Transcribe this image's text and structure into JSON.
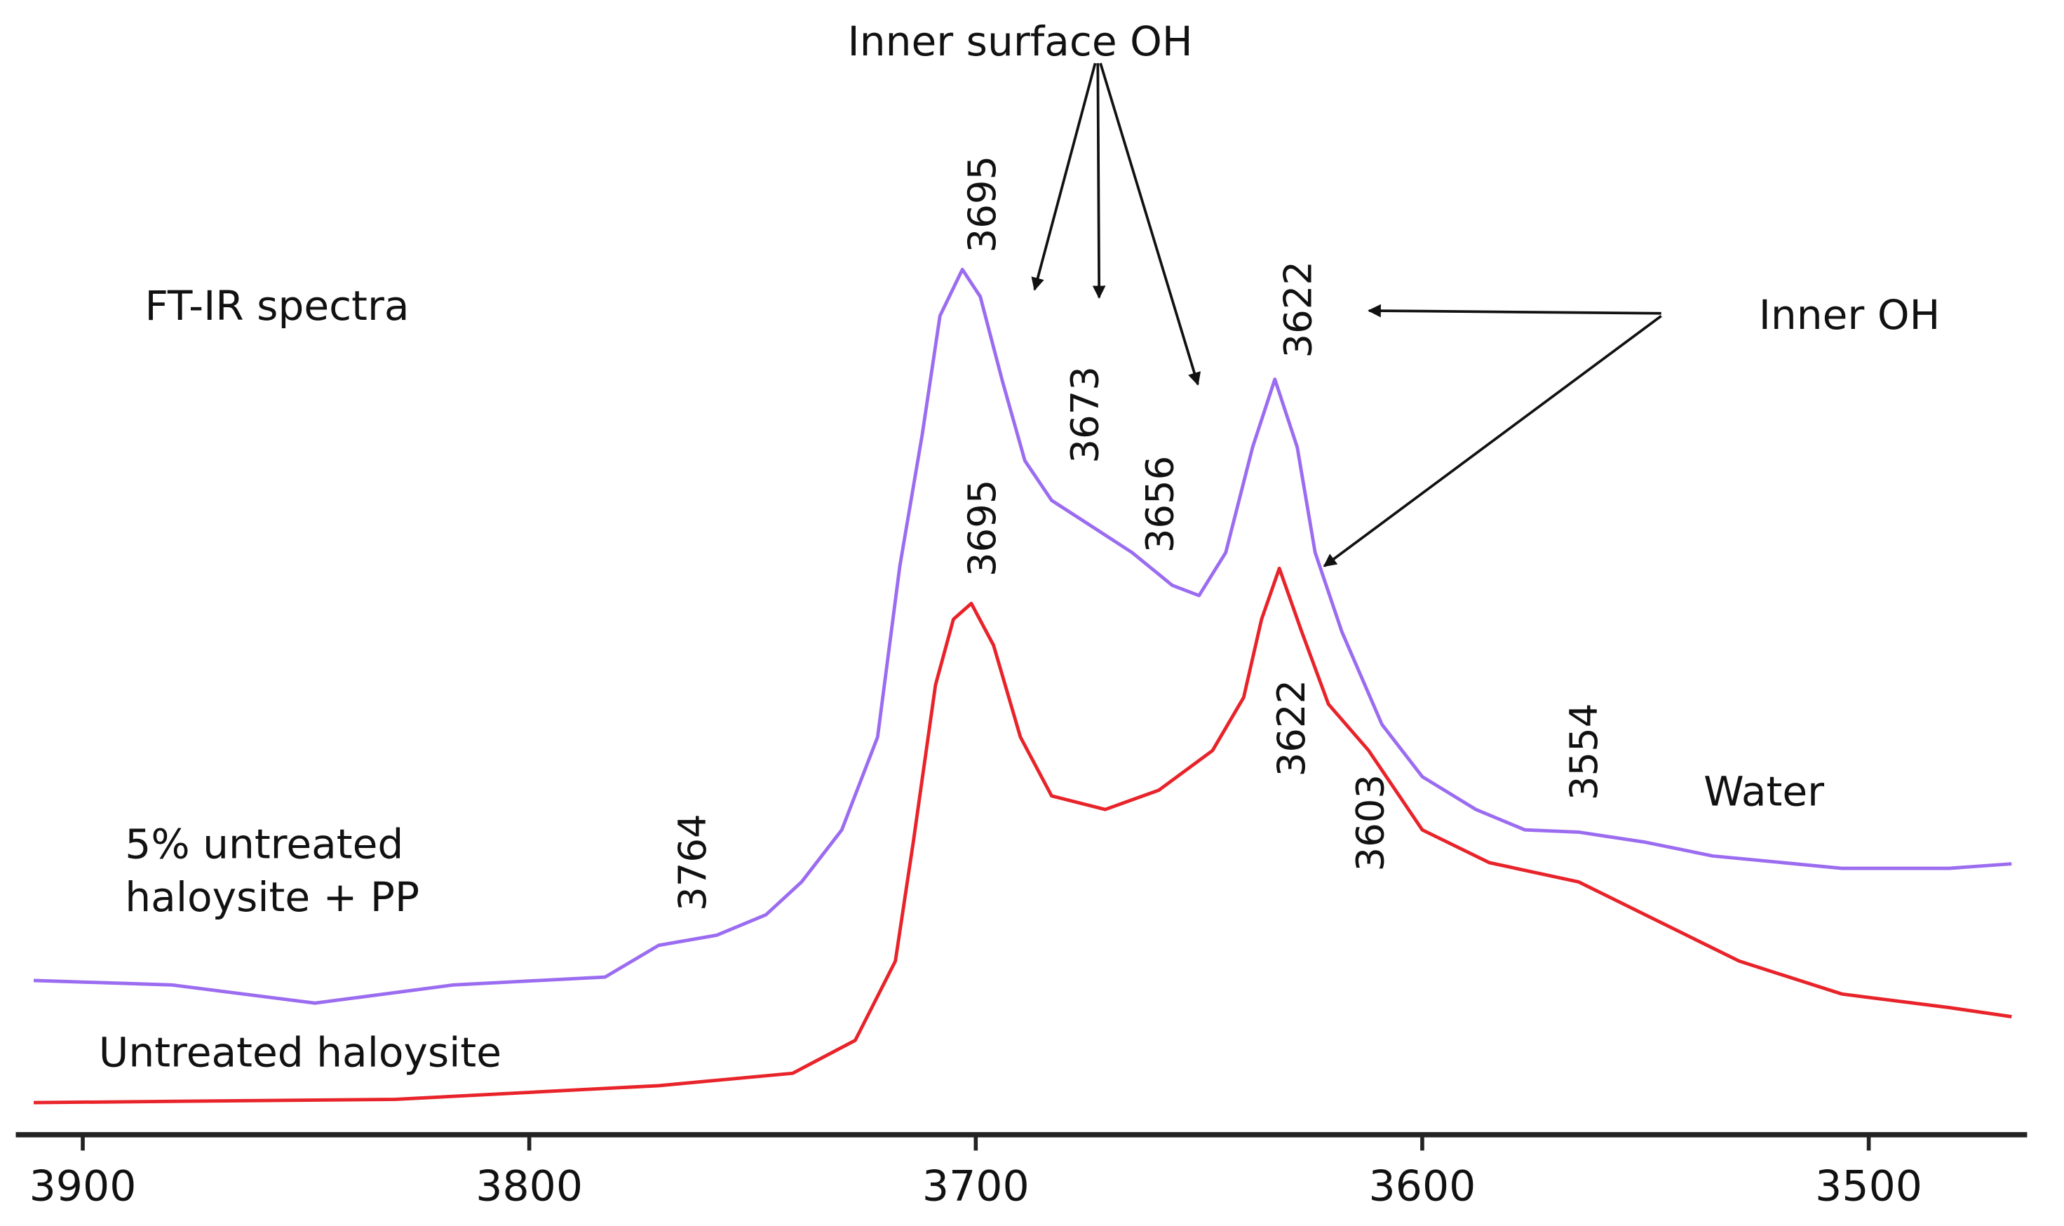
{
  "chart_data": {
    "type": "line",
    "annotations": [
      "FT-IR spectra",
      "Inner surface OH",
      "Inner OH",
      "Water"
    ],
    "xlim": [
      3915,
      3466
    ],
    "xticks": [
      3900,
      3800,
      3700,
      3600,
      3500
    ],
    "ylim": [
      0,
      100
    ],
    "series": [
      {
        "name": "5% untreated haloysite + PP",
        "color": "#9b6cf0",
        "x": [
          3911,
          3880,
          3848,
          3817,
          3783,
          3771,
          3758,
          3747,
          3739,
          3730,
          3722,
          3717,
          3712,
          3708,
          3703,
          3699,
          3694,
          3689,
          3683,
          3674,
          3665,
          3656,
          3650,
          3644,
          3638,
          3633,
          3628,
          3624,
          3618,
          3609,
          3600,
          3588,
          3577,
          3565,
          3550,
          3535,
          3506,
          3482,
          3468
        ],
        "values": [
          13.4,
          13.0,
          11.4,
          13.0,
          13.7,
          16.5,
          17.4,
          19.2,
          22.1,
          26.7,
          34.9,
          50.0,
          61.6,
          72.1,
          76.2,
          73.8,
          66.3,
          59.3,
          55.8,
          53.5,
          51.2,
          48.3,
          47.4,
          51.2,
          60.5,
          66.5,
          60.5,
          51.2,
          44.2,
          36.0,
          31.4,
          28.5,
          26.7,
          26.5,
          25.6,
          24.4,
          23.3,
          23.3,
          23.7
        ],
        "peaks": [
          3764,
          3695,
          3673,
          3656,
          3622,
          3554
        ]
      },
      {
        "name": "Untreated haloysite",
        "color": "#e8232a",
        "x": [
          3911,
          3830,
          3771,
          3741,
          3727,
          3718,
          3714,
          3709,
          3705,
          3701,
          3696,
          3690,
          3683,
          3671,
          3659,
          3647,
          3640,
          3636,
          3632,
          3627,
          3621,
          3612,
          3600,
          3585,
          3565,
          3547,
          3529,
          3506,
          3482,
          3468
        ],
        "values": [
          2.6,
          2.9,
          4.1,
          5.2,
          8.1,
          15.1,
          25.6,
          39.5,
          45.3,
          46.7,
          43.0,
          34.9,
          29.7,
          28.5,
          30.2,
          33.7,
          38.4,
          45.3,
          49.8,
          44.2,
          37.8,
          33.7,
          26.7,
          23.8,
          22.1,
          18.6,
          15.1,
          12.2,
          11.0,
          10.2
        ],
        "peaks": [
          3695,
          3622,
          3603
        ]
      }
    ]
  }
}
